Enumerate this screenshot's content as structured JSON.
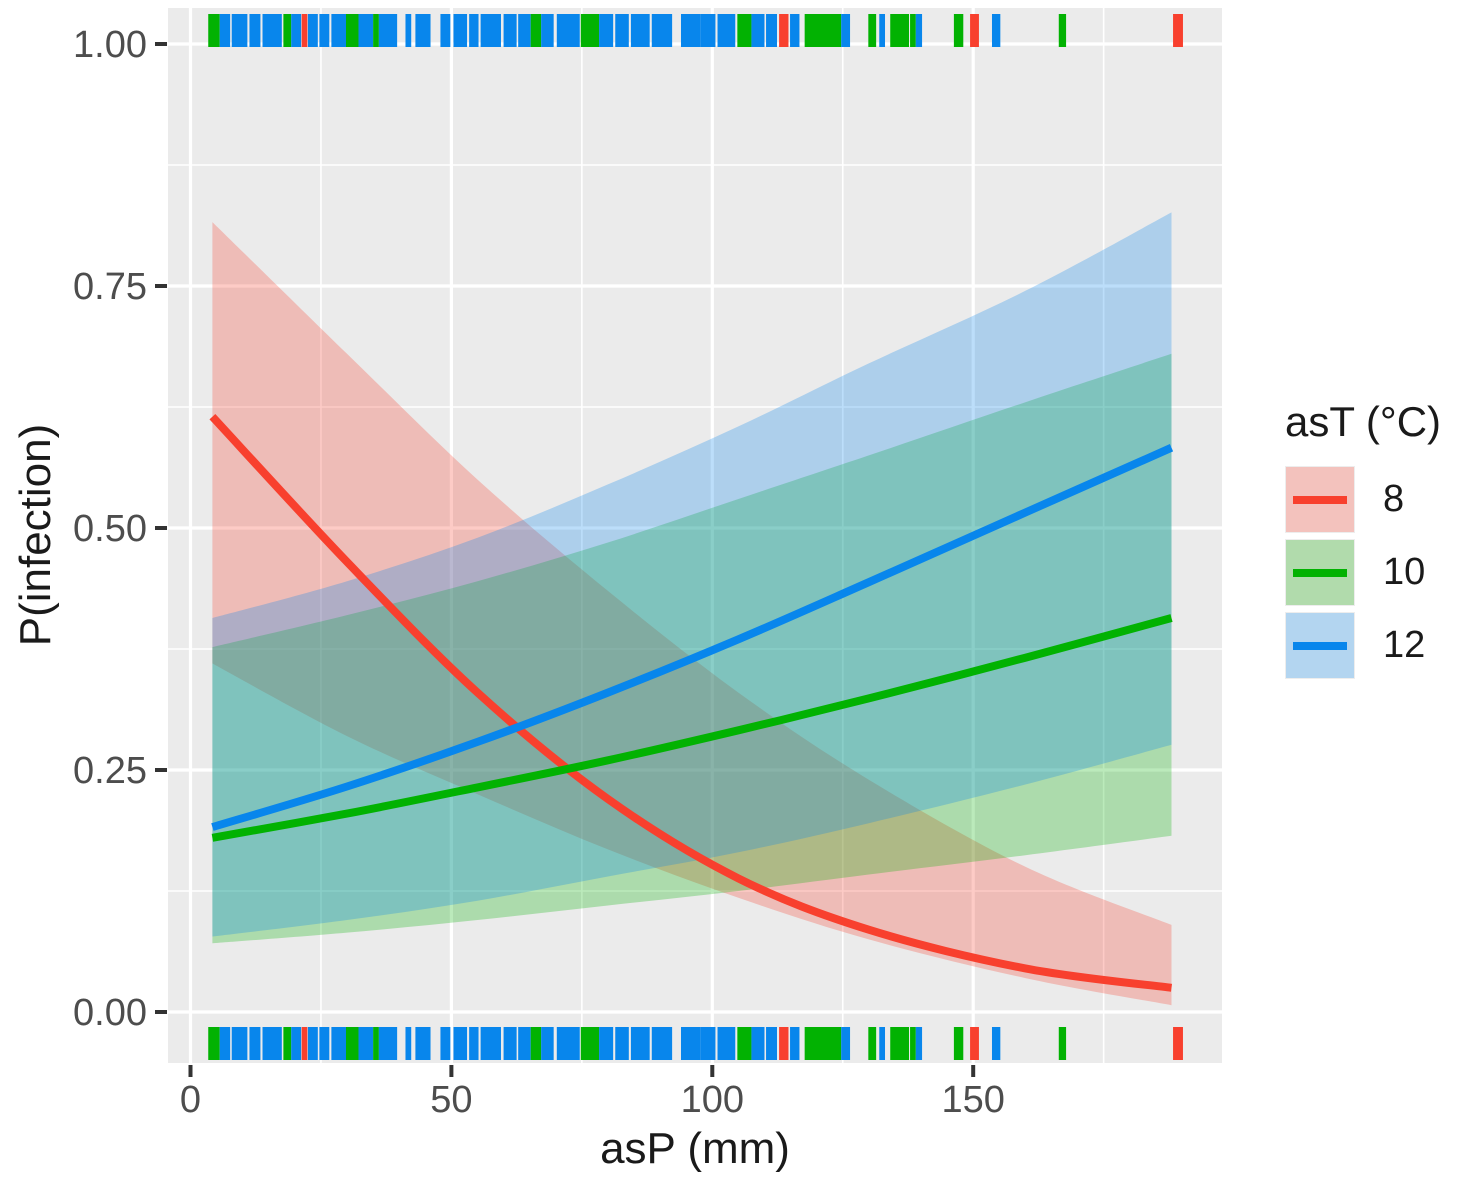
{
  "chart_data": {
    "type": "line",
    "xlabel": "asP (mm)",
    "ylabel": "P(infection)",
    "xlim": [
      -4.3,
      197.7
    ],
    "ylim": [
      -0.053,
      1.037
    ],
    "x_major_ticks": [
      0,
      50,
      100,
      150
    ],
    "x_tick_labels": [
      "0",
      "50",
      "100",
      "150"
    ],
    "x_minor_ticks": [
      25,
      75,
      125,
      175
    ],
    "y_major_ticks": [
      0,
      0.25,
      0.5,
      0.75,
      1.0
    ],
    "y_tick_labels": [
      "0.00",
      "0.25",
      "0.50",
      "0.75",
      "1.00"
    ],
    "y_minor_ticks": [
      0.125,
      0.375,
      0.625,
      0.875
    ],
    "grid": true,
    "panel_bg": "#EBEBEB",
    "grid_color": "#FFFFFF",
    "tick_label_color": "#4D4D4D",
    "axis_title_color": "#1A1A1A",
    "tick_mark_color": "#333333",
    "band_alpha": 0.27,
    "x": [
      4.2,
      30,
      55,
      80,
      105,
      130,
      160,
      188
    ],
    "series": [
      {
        "name": "8",
        "color": "#F8402E",
        "values": [
          0.615,
          0.465,
          0.33,
          0.22,
          0.138,
          0.085,
          0.045,
          0.025
        ],
        "band_upper": [
          0.816,
          0.68,
          0.55,
          0.435,
          0.33,
          0.24,
          0.15,
          0.09
        ],
        "band_lower": [
          0.36,
          0.285,
          0.225,
          0.168,
          0.118,
          0.075,
          0.035,
          0.007
        ]
      },
      {
        "name": "10",
        "color": "#02B202",
        "values": [
          0.18,
          0.205,
          0.232,
          0.26,
          0.291,
          0.324,
          0.366,
          0.407
        ],
        "band_upper": [
          0.377,
          0.41,
          0.445,
          0.485,
          0.53,
          0.575,
          0.63,
          0.68
        ],
        "band_lower": [
          0.071,
          0.082,
          0.095,
          0.11,
          0.125,
          0.142,
          0.162,
          0.182
        ]
      },
      {
        "name": "12",
        "color": "#0886EC",
        "values": [
          0.191,
          0.233,
          0.279,
          0.33,
          0.385,
          0.444,
          0.516,
          0.583
        ],
        "band_upper": [
          0.407,
          0.445,
          0.49,
          0.545,
          0.605,
          0.67,
          0.745,
          0.826
        ],
        "band_lower": [
          0.078,
          0.095,
          0.115,
          0.14,
          0.165,
          0.195,
          0.235,
          0.276
        ]
      }
    ],
    "legend": {
      "title": "asT (°C)",
      "position": "right",
      "entries": [
        {
          "label": "8",
          "key_fill": "#F3C2BD"
        },
        {
          "label": "10",
          "key_fill": "#B1DBAC"
        },
        {
          "label": "12",
          "key_fill": "#B3D5F0"
        }
      ]
    },
    "rug": {
      "sides": [
        "top",
        "bottom"
      ],
      "segments": [
        [
          3.4,
          5.6,
          1
        ],
        [
          5.6,
          7.6,
          2
        ],
        [
          7.9,
          10.9,
          2
        ],
        [
          11.3,
          13.4,
          2
        ],
        [
          13.8,
          17.5,
          2
        ],
        [
          17.8,
          19.3,
          1
        ],
        [
          19.3,
          21.2,
          2
        ],
        [
          21.3,
          22.4,
          0
        ],
        [
          22.5,
          24.4,
          2
        ],
        [
          24.7,
          26.6,
          2
        ],
        [
          27.0,
          29.8,
          2
        ],
        [
          29.8,
          32.2,
          1
        ],
        [
          32.2,
          35.0,
          2
        ],
        [
          35.0,
          36.1,
          1
        ],
        [
          36.1,
          39.6,
          2
        ],
        [
          41.2,
          42.3,
          2
        ],
        [
          43.1,
          46.0,
          2
        ],
        [
          47.9,
          49.8,
          2
        ],
        [
          50.4,
          53.0,
          2
        ],
        [
          53.4,
          55.2,
          2
        ],
        [
          55.6,
          59.5,
          2
        ],
        [
          60.0,
          62.5,
          2
        ],
        [
          62.8,
          65.2,
          2
        ],
        [
          65.2,
          67.2,
          1
        ],
        [
          67.2,
          69.6,
          2
        ],
        [
          70.2,
          74.6,
          2
        ],
        [
          74.8,
          78.3,
          1
        ],
        [
          78.3,
          81.0,
          2
        ],
        [
          81.4,
          84.0,
          2
        ],
        [
          84.4,
          88.0,
          2
        ],
        [
          88.4,
          92.3,
          2
        ],
        [
          94.0,
          97.7,
          2
        ],
        [
          97.7,
          100.6,
          2
        ],
        [
          101.0,
          104.4,
          2
        ],
        [
          104.8,
          107.5,
          1
        ],
        [
          107.5,
          110.0,
          2
        ],
        [
          110.3,
          112.4,
          2
        ],
        [
          112.8,
          114.6,
          0
        ],
        [
          114.9,
          116.7,
          2
        ],
        [
          117.7,
          124.7,
          1
        ],
        [
          124.7,
          126.4,
          2
        ],
        [
          129.9,
          131.4,
          1
        ],
        [
          132.0,
          133.1,
          2
        ],
        [
          134.1,
          137.7,
          1
        ],
        [
          137.9,
          139.0,
          1
        ],
        [
          139.0,
          140.2,
          2
        ],
        [
          146.3,
          148.1,
          1
        ],
        [
          149.4,
          151.1,
          0
        ],
        [
          153.6,
          155.2,
          2
        ],
        [
          166.4,
          167.8,
          1
        ],
        [
          188.3,
          190.2,
          0
        ]
      ]
    }
  }
}
